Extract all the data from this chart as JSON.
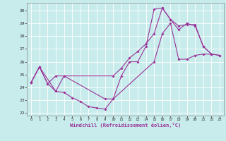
{
  "xlabel": "Windchill (Refroidissement éolien,°C)",
  "background_color": "#c8ecec",
  "grid_color": "#ffffff",
  "line_color": "#993399",
  "xlim": [
    -0.5,
    23.5
  ],
  "ylim": [
    21.8,
    30.6
  ],
  "yticks": [
    22,
    23,
    24,
    25,
    26,
    27,
    28,
    29,
    30
  ],
  "xticks": [
    0,
    1,
    2,
    3,
    4,
    5,
    6,
    7,
    8,
    9,
    10,
    11,
    12,
    13,
    14,
    15,
    16,
    17,
    18,
    19,
    20,
    21,
    22,
    23
  ],
  "line1_x": [
    0,
    1,
    2,
    3,
    4,
    5,
    6,
    7,
    8,
    9,
    10,
    11,
    12,
    13,
    14,
    15,
    16,
    17,
    18,
    19,
    20,
    21,
    22
  ],
  "line1_y": [
    24.4,
    25.6,
    24.3,
    23.7,
    23.6,
    23.2,
    22.9,
    22.5,
    22.4,
    22.3,
    23.1,
    24.9,
    26.0,
    26.0,
    27.2,
    30.1,
    30.2,
    29.3,
    28.8,
    28.9,
    28.9,
    27.2,
    26.6
  ],
  "line2_x": [
    0,
    1,
    2,
    3,
    4,
    10,
    11,
    12,
    13,
    14,
    15,
    16,
    17,
    18,
    19,
    20,
    21,
    22,
    23
  ],
  "line2_y": [
    24.4,
    25.6,
    24.3,
    24.9,
    24.9,
    24.9,
    25.5,
    26.3,
    26.8,
    27.4,
    28.2,
    30.2,
    29.3,
    28.5,
    29.0,
    28.8,
    27.2,
    26.6,
    26.5
  ],
  "line3_x": [
    0,
    1,
    3,
    4,
    9,
    10,
    15,
    16,
    17,
    18,
    19,
    20,
    21,
    22,
    23
  ],
  "line3_y": [
    24.4,
    25.6,
    23.7,
    24.9,
    23.1,
    23.1,
    26.0,
    28.2,
    29.0,
    26.2,
    26.2,
    26.5,
    26.6,
    26.6,
    26.5
  ]
}
